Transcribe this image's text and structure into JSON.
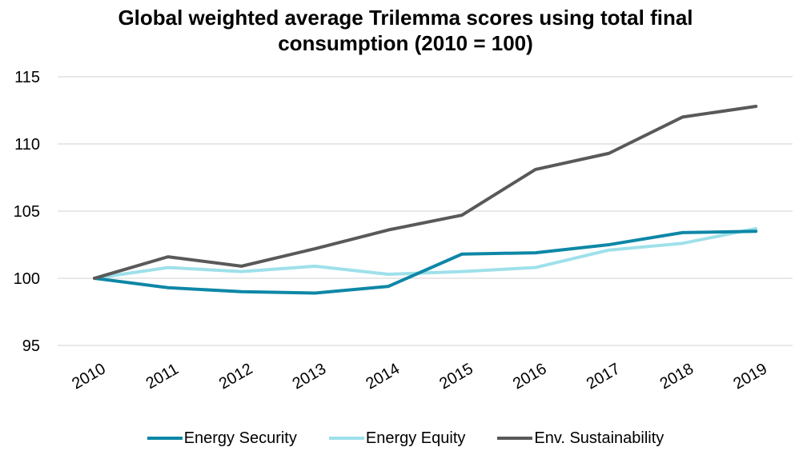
{
  "chart_data": {
    "type": "line",
    "title_lines": [
      "Global weighted average Trilemma scores using total final",
      "consumption (2010 = 100)"
    ],
    "categories": [
      "2010",
      "2011",
      "2012",
      "2013",
      "2014",
      "2015",
      "2016",
      "2017",
      "2018",
      "2019"
    ],
    "ylim": [
      95,
      115
    ],
    "yticks": [
      "95",
      "100",
      "105",
      "110",
      "115"
    ],
    "grid": true,
    "legend_position": "bottom",
    "series": [
      {
        "name": "Energy Security",
        "color": "#0e87a6",
        "values": [
          100,
          99.3,
          99.0,
          98.9,
          99.4,
          101.8,
          101.9,
          102.5,
          103.4,
          103.5
        ]
      },
      {
        "name": "Energy Equity",
        "color": "#9ee0ea",
        "values": [
          100,
          100.8,
          100.5,
          100.9,
          100.3,
          100.5,
          100.8,
          102.1,
          102.6,
          103.7
        ]
      },
      {
        "name": "Env. Sustainability",
        "color": "#595959",
        "values": [
          100,
          101.6,
          100.9,
          102.2,
          103.6,
          104.7,
          108.1,
          109.3,
          112.0,
          112.8
        ]
      }
    ]
  }
}
